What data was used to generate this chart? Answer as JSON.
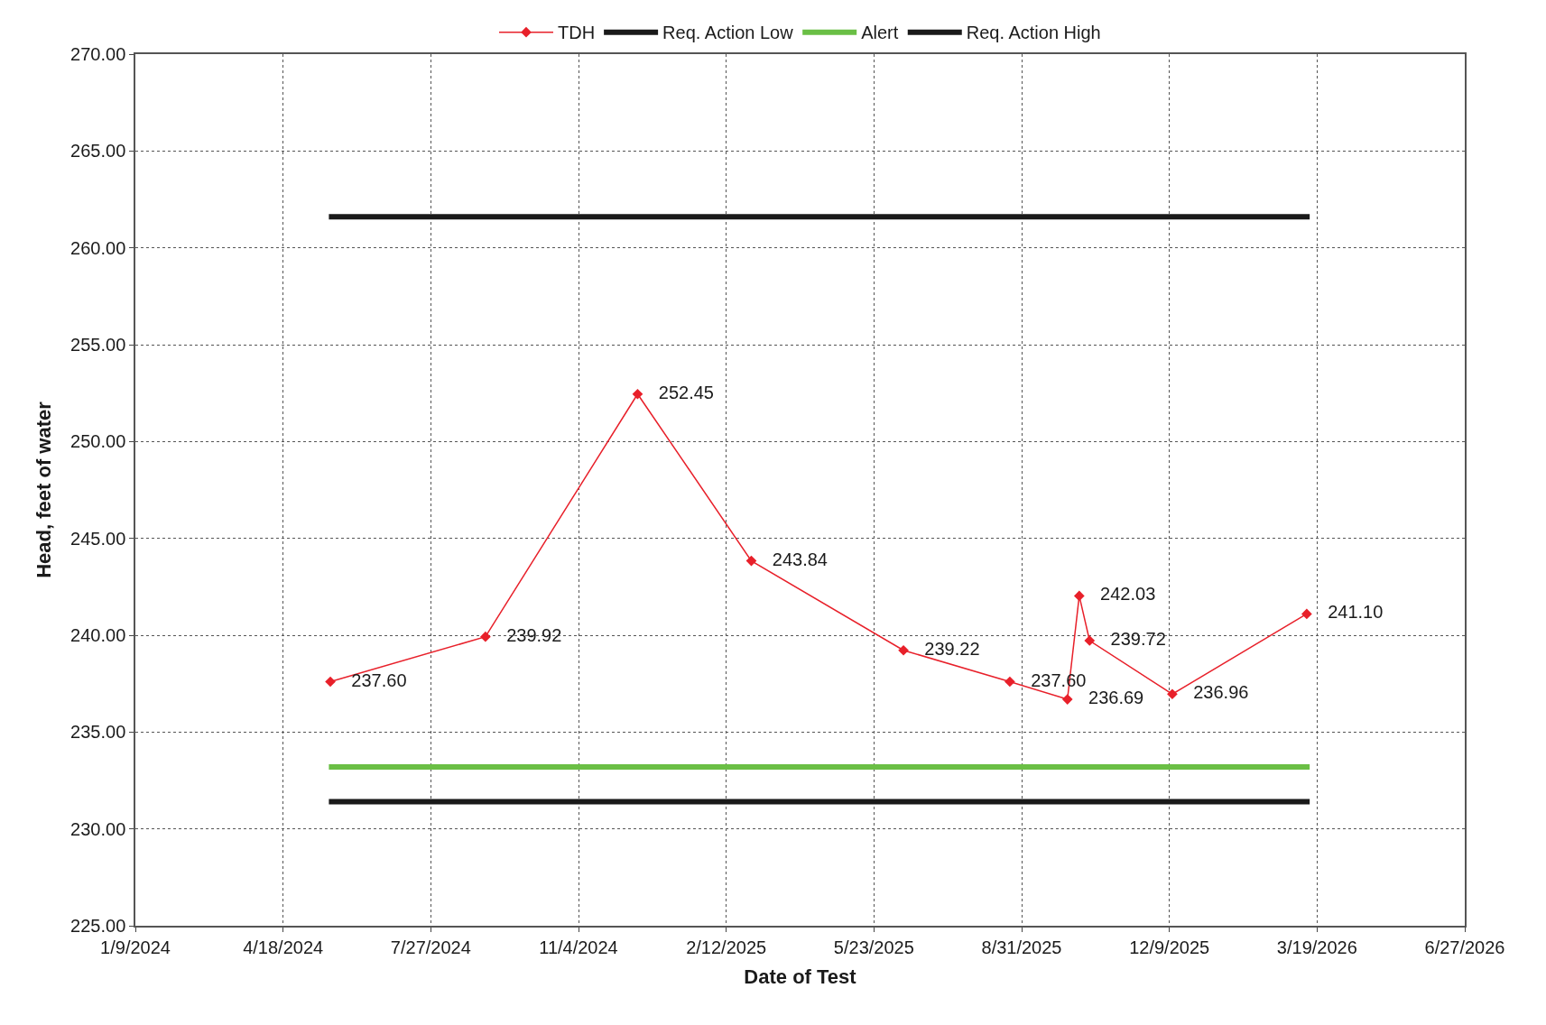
{
  "chart_data": {
    "type": "line",
    "xlabel": "Date of Test",
    "ylabel": "Head, feet of water",
    "series": [
      {
        "name": "TDH",
        "color": "#e8202a",
        "marker": "diamond",
        "x": [
          "2024-05-20",
          "2024-09-02",
          "2024-12-14",
          "2025-03-01",
          "2025-06-12",
          "2025-08-23",
          "2025-10-01",
          "2025-10-09",
          "2025-10-16",
          "2025-12-11",
          "2026-03-12"
        ],
        "values": [
          237.6,
          239.92,
          252.45,
          243.84,
          239.22,
          237.6,
          236.69,
          242.03,
          239.72,
          236.96,
          241.1
        ],
        "value_labels": [
          "237.60",
          "239.92",
          "252.45",
          "243.84",
          "239.22",
          "237.60",
          "236.69",
          "242.03",
          "239.72",
          "236.96",
          "241.10"
        ]
      },
      {
        "name": "Req. Action Low",
        "color": "#1a1a1a",
        "marker": "none",
        "x": [
          "2024-05-19",
          "2026-03-14"
        ],
        "values": [
          231.4,
          231.4
        ]
      },
      {
        "name": "Alert",
        "color": "#6abf45",
        "marker": "none",
        "x": [
          "2024-05-19",
          "2026-03-14"
        ],
        "values": [
          233.2,
          233.2
        ]
      },
      {
        "name": "Req. Action High",
        "color": "#1a1a1a",
        "marker": "none",
        "x": [
          "2024-05-19",
          "2026-03-14"
        ],
        "values": [
          261.6,
          261.6
        ]
      }
    ],
    "xlim": [
      "2024-01-09",
      "2026-06-27"
    ],
    "xticks": [
      {
        "value": "2024-01-09",
        "label": "1/9/2024"
      },
      {
        "value": "2024-04-18",
        "label": "4/18/2024"
      },
      {
        "value": "2024-07-27",
        "label": "7/27/2024"
      },
      {
        "value": "2024-11-04",
        "label": "11/4/2024"
      },
      {
        "value": "2025-02-12",
        "label": "2/12/2025"
      },
      {
        "value": "2025-05-23",
        "label": "5/23/2025"
      },
      {
        "value": "2025-08-31",
        "label": "8/31/2025"
      },
      {
        "value": "2025-12-09",
        "label": "12/9/2025"
      },
      {
        "value": "2026-03-19",
        "label": "3/19/2026"
      },
      {
        "value": "2026-06-27",
        "label": "6/27/2026"
      }
    ],
    "ylim": [
      225,
      270
    ],
    "yticks": [
      {
        "value": 225,
        "label": "225.00"
      },
      {
        "value": 230,
        "label": "230.00"
      },
      {
        "value": 235,
        "label": "235.00"
      },
      {
        "value": 240,
        "label": "240.00"
      },
      {
        "value": 245,
        "label": "245.00"
      },
      {
        "value": 250,
        "label": "250.00"
      },
      {
        "value": 255,
        "label": "255.00"
      },
      {
        "value": 260,
        "label": "260.00"
      },
      {
        "value": 265,
        "label": "265.00"
      },
      {
        "value": 270,
        "label": "270.00"
      }
    ],
    "grid": true,
    "legend": "top",
    "line_style": "solid"
  }
}
